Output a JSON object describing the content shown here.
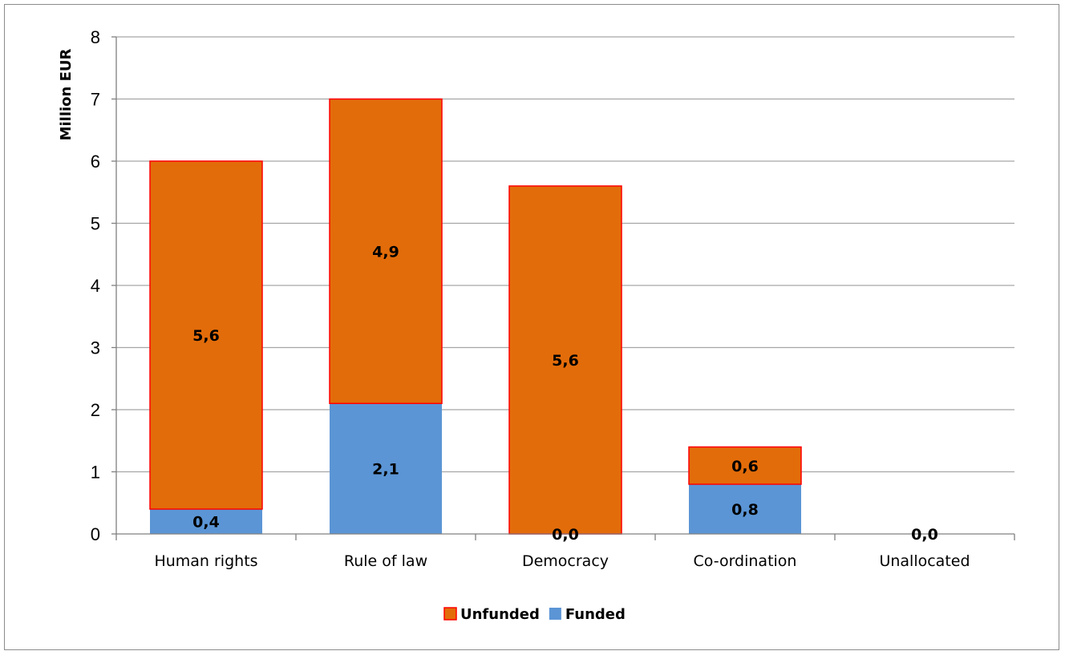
{
  "chart_data": {
    "type": "bar",
    "stacked": true,
    "ylabel": "Million EUR",
    "xlabel": "",
    "ylim": [
      0,
      8
    ],
    "yticks": [
      "0",
      "1",
      "2",
      "3",
      "4",
      "5",
      "6",
      "7",
      "8"
    ],
    "grid": true,
    "legend_position": "bottom",
    "categories": [
      "Human rights",
      "Rule of law",
      "Democracy",
      "Co-ordination",
      "Unallocated"
    ],
    "series": [
      {
        "name": "Funded",
        "color": "#5b95d5",
        "values": [
          0.4,
          2.1,
          0.0,
          0.8,
          0.0
        ],
        "labels": [
          "0,4",
          "2,1",
          "0,0",
          "0,8",
          "0,0"
        ]
      },
      {
        "name": "Unfunded",
        "color": "#e36c0a",
        "edge_color": "#ff0000",
        "values": [
          5.6,
          4.9,
          5.6,
          0.6,
          0.0
        ],
        "labels": [
          "5,6",
          "4,9",
          "5,6",
          "0,6",
          ""
        ]
      }
    ],
    "legend": [
      {
        "name": "Unfunded",
        "color": "#e36c0a",
        "edge_color": "#ff0000"
      },
      {
        "name": "Funded",
        "color": "#5b95d5"
      }
    ]
  }
}
